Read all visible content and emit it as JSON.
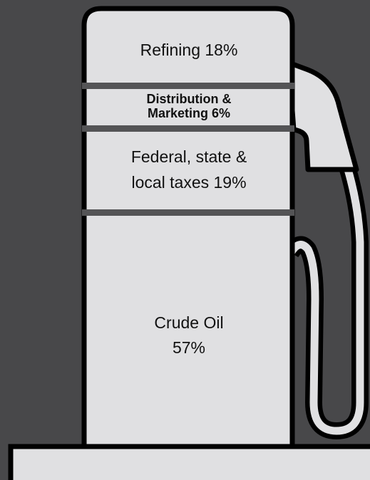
{
  "segments": [
    {
      "lines": [
        "Refining 18%"
      ]
    },
    {
      "lines": [
        "Distribution &",
        "Marketing 6%"
      ]
    },
    {
      "lines": [
        "Federal, state &",
        "local taxes 19%"
      ]
    },
    {
      "lines": [
        "Crude Oil",
        "57%"
      ]
    }
  ]
}
